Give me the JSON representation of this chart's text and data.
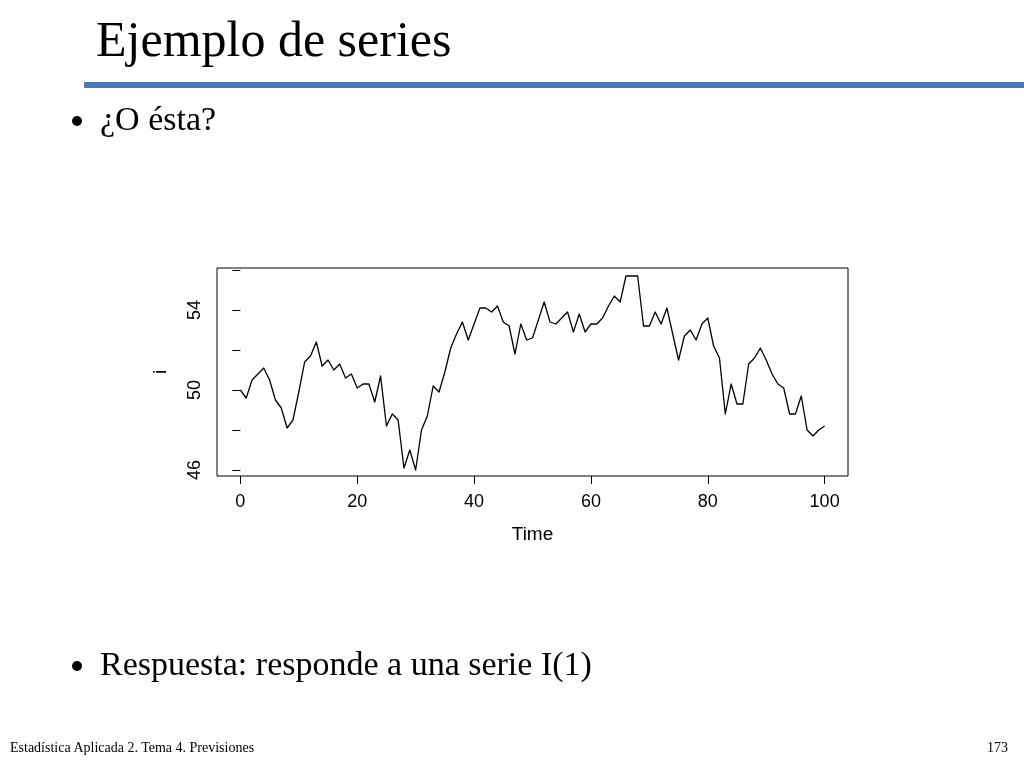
{
  "chart_data": {
    "type": "line",
    "title": "Ejemplo de series",
    "annotations": [
      "¿O ésta?",
      "Respuesta: responde a una serie I(1)",
      "Estadística Aplicada 2. Tema 4. Previsiones",
      "173"
    ],
    "xlabel": "Time",
    "ylabel": "i",
    "x": [
      0,
      1,
      2,
      3,
      4,
      5,
      6,
      7,
      8,
      9,
      10,
      11,
      12,
      13,
      14,
      15,
      16,
      17,
      18,
      19,
      20,
      21,
      22,
      23,
      24,
      25,
      26,
      27,
      28,
      29,
      30,
      31,
      32,
      33,
      34,
      35,
      36,
      37,
      38,
      39,
      40,
      41,
      42,
      43,
      44,
      45,
      46,
      47,
      48,
      49,
      50,
      51,
      52,
      53,
      54,
      55,
      56,
      57,
      58,
      59,
      60,
      61,
      62,
      63,
      64,
      65,
      66,
      67,
      68,
      69,
      70,
      71,
      72,
      73,
      74,
      75,
      76,
      77,
      78,
      79,
      80,
      81,
      82,
      83,
      84,
      85,
      86,
      87,
      88,
      89,
      90,
      91,
      92,
      93,
      94,
      95,
      96,
      97,
      98,
      99,
      100
    ],
    "series": [
      {
        "color": "#000000",
        "values": [
          50.0,
          49.6,
          50.5,
          50.8,
          51.1,
          50.5,
          49.5,
          49.1,
          48.1,
          48.5,
          49.9,
          51.4,
          51.7,
          52.4,
          51.2,
          51.5,
          51.0,
          51.3,
          50.6,
          50.8,
          50.1,
          50.3,
          50.3,
          49.4,
          50.7,
          48.2,
          48.8,
          48.5,
          46.1,
          47.0,
          46.0,
          48.0,
          48.7,
          50.2,
          49.9,
          50.9,
          52.1,
          52.8,
          53.4,
          52.5,
          53.3,
          54.1,
          54.1,
          53.9,
          54.2,
          53.4,
          53.2,
          51.8,
          53.3,
          52.5,
          52.6,
          53.5,
          54.4,
          53.4,
          53.3,
          53.6,
          53.9,
          52.9,
          53.8,
          52.9,
          53.3,
          53.3,
          53.6,
          54.2,
          54.7,
          54.4,
          55.7,
          55.7,
          55.7,
          53.2,
          53.2,
          53.9,
          53.3,
          54.1,
          52.8,
          51.5,
          52.7,
          53.0,
          52.5,
          53.3,
          53.6,
          52.2,
          51.6,
          48.8,
          50.3,
          49.3,
          49.3,
          51.3,
          51.6,
          52.1,
          51.5,
          50.8,
          50.3,
          50.1,
          48.8,
          48.8,
          49.7,
          48.0,
          47.7,
          48.0,
          48.2
        ]
      }
    ],
    "xlim": [
      -4,
      104
    ],
    "xticks": [
      0,
      20,
      40,
      60,
      80,
      100
    ],
    "ylim": [
      45.7,
      56.1
    ],
    "yticks": [
      46,
      {
        "value": 48,
        "label": null
      },
      50,
      {
        "value": 52,
        "label": null
      },
      54,
      {
        "value": 56,
        "label": null
      }
    ],
    "grid": false,
    "marker": "none",
    "line_style": "solid"
  }
}
